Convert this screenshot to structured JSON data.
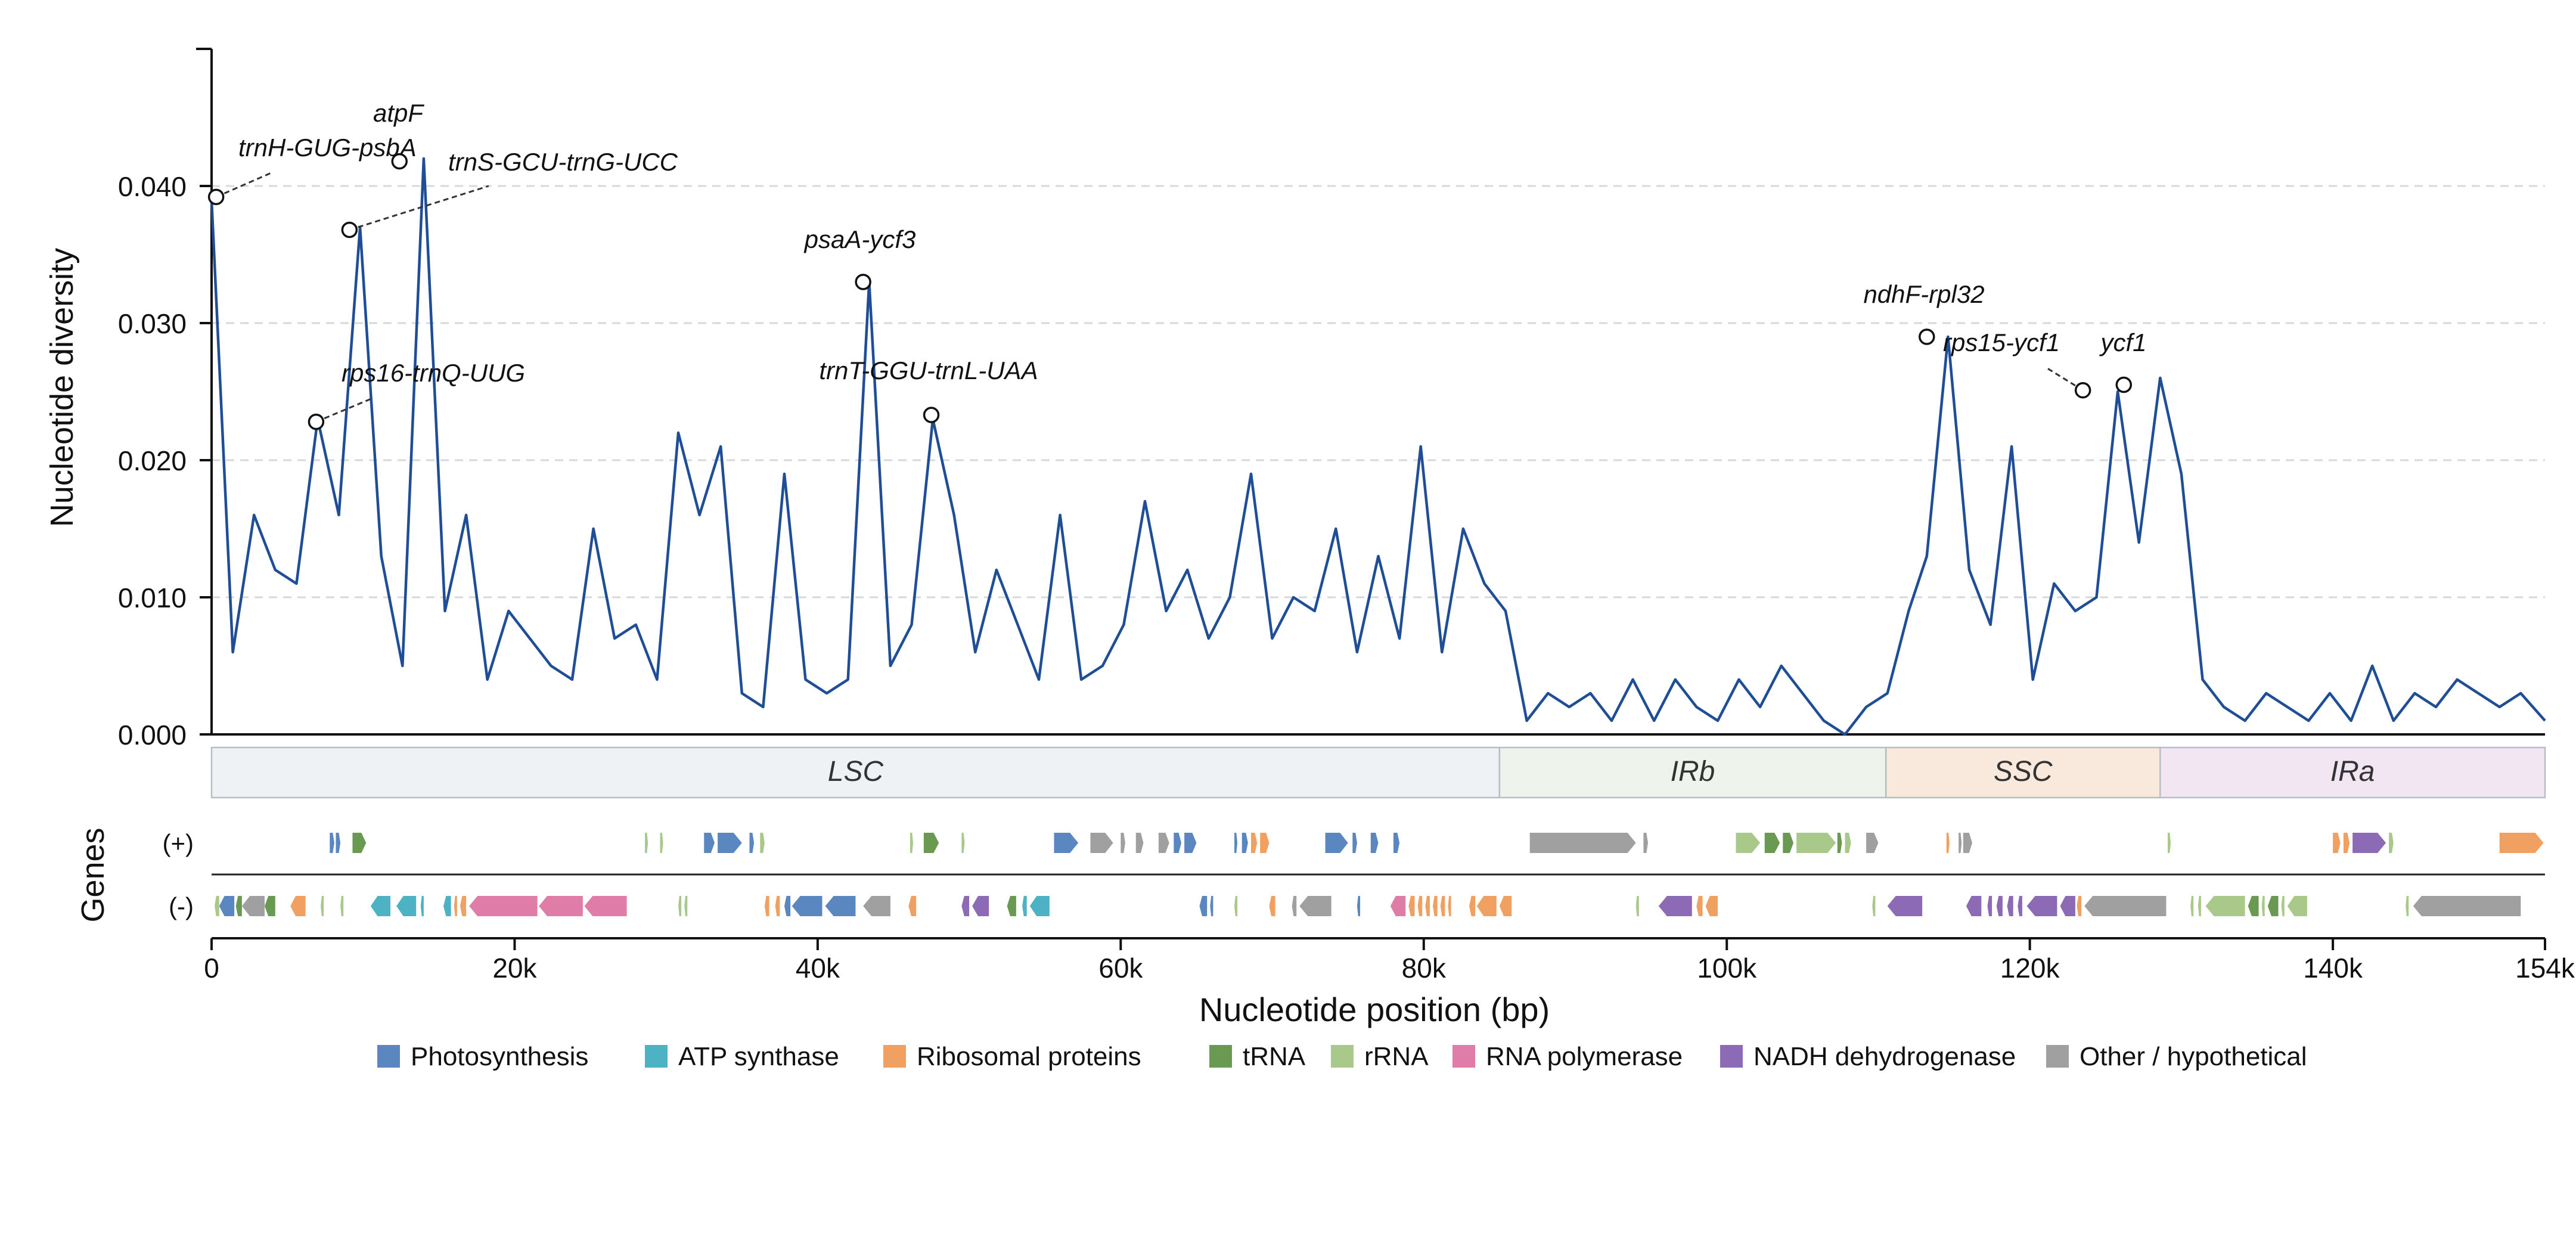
{
  "chart_data": {
    "type": "line",
    "xlabel": "Nucleotide position (bp)",
    "ylabel": "Nucleotide diversity",
    "genes_label": "Genes",
    "xlim": [
      0,
      154000
    ],
    "ylim": [
      0,
      0.05
    ],
    "x_ticks": [
      0,
      20000,
      40000,
      60000,
      80000,
      100000,
      120000,
      140000,
      154000
    ],
    "x_tick_labels": [
      "0",
      "20k",
      "40k",
      "60k",
      "80k",
      "100k",
      "120k",
      "140k",
      "154k"
    ],
    "y_ticks": [
      0.0,
      0.01,
      0.02,
      0.03,
      0.04
    ],
    "y_tick_labels": [
      "0.000",
      "0.010",
      "0.020",
      "0.030",
      "0.040"
    ],
    "grid": "horizontal dashed",
    "line_color": "#1f4e96",
    "diversity": {
      "x": [
        0,
        1400,
        2800,
        4200,
        5600,
        7000,
        8400,
        9800,
        11200,
        12600,
        14000,
        15400,
        16800,
        18200,
        19600,
        21000,
        22400,
        23800,
        25200,
        26600,
        28000,
        29400,
        30800,
        32200,
        33600,
        35000,
        36400,
        37800,
        39200,
        40600,
        42000,
        43400,
        44800,
        46200,
        47600,
        49000,
        50400,
        51800,
        53200,
        54600,
        56000,
        57400,
        58800,
        60200,
        61600,
        63000,
        64400,
        65800,
        67200,
        68600,
        70000,
        71400,
        72800,
        74200,
        75600,
        77000,
        78400,
        79800,
        81200,
        82600,
        84000,
        85400,
        86800,
        88200,
        89600,
        91000,
        92400,
        93800,
        95200,
        96600,
        98000,
        99400,
        100800,
        102200,
        103600,
        105000,
        106400,
        107800,
        109200,
        110600,
        112000,
        113200,
        114600,
        116000,
        117400,
        118800,
        120200,
        121600,
        123000,
        124400,
        125800,
        127200,
        128600,
        130000,
        131400,
        132800,
        134200,
        135600,
        137000,
        138400,
        139800,
        141200,
        142600,
        144000,
        145400,
        146800,
        148200,
        149600,
        151000,
        152400,
        154000
      ],
      "y": [
        0.039,
        0.006,
        0.016,
        0.012,
        0.011,
        0.023,
        0.016,
        0.037,
        0.013,
        0.005,
        0.042,
        0.009,
        0.016,
        0.004,
        0.009,
        0.007,
        0.005,
        0.004,
        0.015,
        0.007,
        0.008,
        0.004,
        0.022,
        0.016,
        0.021,
        0.003,
        0.002,
        0.019,
        0.004,
        0.003,
        0.004,
        0.033,
        0.005,
        0.008,
        0.023,
        0.016,
        0.006,
        0.012,
        0.008,
        0.004,
        0.016,
        0.004,
        0.005,
        0.008,
        0.017,
        0.009,
        0.012,
        0.007,
        0.01,
        0.019,
        0.007,
        0.01,
        0.009,
        0.015,
        0.006,
        0.013,
        0.007,
        0.021,
        0.006,
        0.015,
        0.011,
        0.009,
        0.001,
        0.003,
        0.002,
        0.003,
        0.001,
        0.004,
        0.001,
        0.004,
        0.002,
        0.001,
        0.004,
        0.002,
        0.005,
        0.003,
        0.001,
        0.0,
        0.002,
        0.003,
        0.009,
        0.013,
        0.029,
        0.012,
        0.008,
        0.021,
        0.004,
        0.011,
        0.009,
        0.01,
        0.025,
        0.014,
        0.026,
        0.019,
        0.004,
        0.002,
        0.001,
        0.003,
        0.002,
        0.001,
        0.003,
        0.001,
        0.005,
        0.001,
        0.003,
        0.002,
        0.004,
        0.003,
        0.002,
        0.003,
        0.001
      ]
    },
    "peaks": [
      {
        "label": "trnH-GUG-psbA",
        "x": 300,
        "y": 0.0392
      },
      {
        "label": "atpF",
        "x": 12400,
        "y": 0.0418
      },
      {
        "label": "trnS-GCU-trnG-UCC",
        "x": 9100,
        "y": 0.0368
      },
      {
        "label": "rps16-trnQ-UUG",
        "x": 6900,
        "y": 0.0228
      },
      {
        "label": "psaA-ycf3",
        "x": 43000,
        "y": 0.033
      },
      {
        "label": "trnT-GGU-trnL-UAA",
        "x": 47500,
        "y": 0.0233
      },
      {
        "label": "ndhF-rpl32",
        "x": 113200,
        "y": 0.029
      },
      {
        "label": "rps15-ycf1",
        "x": 123500,
        "y": 0.0251
      },
      {
        "label": "ycf1",
        "x": 126200,
        "y": 0.0255
      }
    ],
    "regions": [
      {
        "label": "LSC",
        "start": 0,
        "end": 85000,
        "color": "#eef2f5"
      },
      {
        "label": "IRb",
        "start": 85000,
        "end": 110500,
        "color": "#eef4ec"
      },
      {
        "label": "SSC",
        "start": 110500,
        "end": 128600,
        "color": "#f8e9dc"
      },
      {
        "label": "IRa",
        "start": 128600,
        "end": 154000,
        "color": "#f1e6f1"
      }
    ],
    "strand_labels": {
      "plus": "(+)",
      "minus": "(-)"
    },
    "categories": [
      {
        "name": "Photosynthesis",
        "color": "#5b87c0"
      },
      {
        "name": "ATP synthase",
        "color": "#4db3c4"
      },
      {
        "name": "Ribosomal proteins",
        "color": "#f0a060"
      },
      {
        "name": "tRNA",
        "color": "#6a9a52"
      },
      {
        "name": "rRNA",
        "color": "#a8c98a"
      },
      {
        "name": "RNA polymerase",
        "color": "#e07ca8"
      },
      {
        "name": "NADH dehydrogenase",
        "color": "#8c6ab5"
      },
      {
        "name": "Other / hypothetical",
        "color": "#a0a0a0"
      }
    ],
    "genes_plus": [
      [
        7800,
        8100,
        0
      ],
      [
        8200,
        8500,
        0
      ],
      [
        9300,
        10200,
        3
      ],
      [
        28600,
        28800,
        4
      ],
      [
        29600,
        29800,
        4
      ],
      [
        32500,
        33200,
        0
      ],
      [
        33400,
        35000,
        0
      ],
      [
        35500,
        35800,
        0
      ],
      [
        36200,
        36500,
        4
      ],
      [
        46100,
        46300,
        4
      ],
      [
        47000,
        48000,
        3
      ],
      [
        49500,
        49700,
        4
      ],
      [
        55600,
        57200,
        0
      ],
      [
        58000,
        59500,
        7
      ],
      [
        60000,
        60300,
        7
      ],
      [
        61000,
        61500,
        7
      ],
      [
        62500,
        63200,
        7
      ],
      [
        63500,
        64000,
        0
      ],
      [
        64200,
        65000,
        0
      ],
      [
        67500,
        67700,
        0
      ],
      [
        68000,
        68400,
        0
      ],
      [
        68600,
        69000,
        2
      ],
      [
        69200,
        69800,
        2
      ],
      [
        73500,
        75000,
        0
      ],
      [
        75300,
        75600,
        0
      ],
      [
        76500,
        77000,
        0
      ],
      [
        78000,
        78400,
        0
      ],
      [
        87000,
        94000,
        7
      ],
      [
        94500,
        94800,
        7
      ],
      [
        100600,
        102200,
        4
      ],
      [
        102500,
        103500,
        3
      ],
      [
        103700,
        104400,
        3
      ],
      [
        104600,
        107200,
        4
      ],
      [
        107300,
        107600,
        3
      ],
      [
        107800,
        108200,
        4
      ],
      [
        109200,
        110000,
        7
      ],
      [
        114500,
        114700,
        2
      ],
      [
        115300,
        115500,
        7
      ],
      [
        115600,
        116200,
        7
      ],
      [
        129100,
        129300,
        4
      ],
      [
        140000,
        140500,
        2
      ],
      [
        140700,
        141100,
        2
      ],
      [
        141300,
        143500,
        6
      ],
      [
        143700,
        144000,
        4
      ],
      [
        151000,
        153900,
        2
      ]
    ],
    "genes_minus": [
      [
        200,
        500,
        4
      ],
      [
        500,
        1500,
        0
      ],
      [
        1600,
        2000,
        3
      ],
      [
        2000,
        3500,
        7
      ],
      [
        3500,
        4200,
        3
      ],
      [
        5200,
        6200,
        2
      ],
      [
        7200,
        7400,
        4
      ],
      [
        8500,
        8700,
        4
      ],
      [
        10500,
        11800,
        1
      ],
      [
        12200,
        13500,
        1
      ],
      [
        13800,
        14000,
        1
      ],
      [
        15300,
        15800,
        1
      ],
      [
        16000,
        16200,
        2
      ],
      [
        16400,
        16800,
        2
      ],
      [
        17000,
        21500,
        5
      ],
      [
        21600,
        24500,
        5
      ],
      [
        24600,
        27400,
        5
      ],
      [
        30800,
        31000,
        4
      ],
      [
        31200,
        31400,
        4
      ],
      [
        36500,
        36800,
        2
      ],
      [
        37200,
        37500,
        2
      ],
      [
        37800,
        38200,
        0
      ],
      [
        38300,
        40300,
        0
      ],
      [
        40500,
        42500,
        0
      ],
      [
        43000,
        44800,
        7
      ],
      [
        46000,
        46500,
        2
      ],
      [
        49500,
        50000,
        6
      ],
      [
        50200,
        51300,
        6
      ],
      [
        52500,
        53100,
        3
      ],
      [
        53500,
        53800,
        1
      ],
      [
        54000,
        55300,
        1
      ],
      [
        65200,
        65700,
        0
      ],
      [
        65900,
        66100,
        0
      ],
      [
        67500,
        67700,
        4
      ],
      [
        69800,
        70200,
        2
      ],
      [
        71300,
        71600,
        7
      ],
      [
        71800,
        73900,
        7
      ],
      [
        75600,
        75800,
        0
      ],
      [
        77800,
        78800,
        5
      ],
      [
        79000,
        79400,
        2
      ],
      [
        79600,
        79900,
        2
      ],
      [
        80100,
        80400,
        2
      ],
      [
        80600,
        80900,
        2
      ],
      [
        81100,
        81400,
        2
      ],
      [
        81600,
        81800,
        2
      ],
      [
        83000,
        83400,
        2
      ],
      [
        83500,
        84800,
        2
      ],
      [
        85000,
        85800,
        2
      ],
      [
        94000,
        94200,
        4
      ],
      [
        95500,
        97700,
        6
      ],
      [
        98000,
        98400,
        2
      ],
      [
        98600,
        99400,
        2
      ],
      [
        109600,
        109800,
        4
      ],
      [
        110600,
        112900,
        6
      ],
      [
        115800,
        116800,
        6
      ],
      [
        117200,
        117500,
        6
      ],
      [
        117800,
        118200,
        6
      ],
      [
        118500,
        118900,
        6
      ],
      [
        119200,
        119500,
        6
      ],
      [
        119800,
        121800,
        6
      ],
      [
        122000,
        123000,
        6
      ],
      [
        123100,
        123400,
        2
      ],
      [
        123600,
        129000,
        7
      ],
      [
        130600,
        130800,
        4
      ],
      [
        131100,
        131300,
        4
      ],
      [
        131600,
        134200,
        4
      ],
      [
        134400,
        135100,
        3
      ],
      [
        135300,
        135500,
        4
      ],
      [
        135700,
        136400,
        3
      ],
      [
        136600,
        136800,
        4
      ],
      [
        137000,
        138300,
        4
      ],
      [
        144800,
        145000,
        4
      ],
      [
        145300,
        152400,
        7
      ]
    ]
  }
}
